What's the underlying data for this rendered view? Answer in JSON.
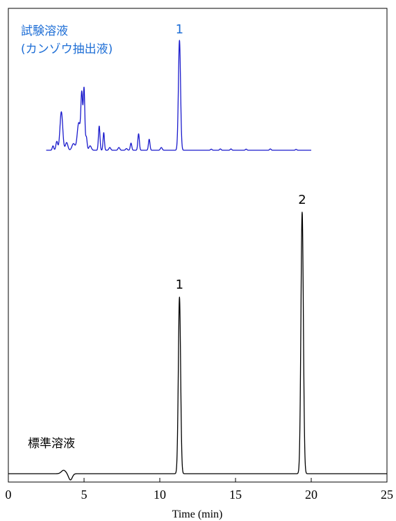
{
  "chart_data": {
    "type": "line",
    "xlabel": "Time (min)",
    "xlim": [
      0,
      25
    ],
    "x_ticks": [
      0,
      5,
      10,
      15,
      20,
      25
    ],
    "x_tick_labels": [
      "0",
      "5",
      "10",
      "15",
      "20",
      "25"
    ],
    "grid": false,
    "series": [
      {
        "name": "試験溶液 (カンゾウ抽出液)",
        "label_lines": [
          "試験溶液",
          "(カンゾウ抽出液)"
        ],
        "color": "#1a1acc",
        "label_color": "#1f6fd6",
        "x_range": [
          2.5,
          20.0
        ],
        "peaks": [
          {
            "t": 2.95,
            "h": 0.04,
            "w": 0.05
          },
          {
            "t": 3.2,
            "h": 0.08,
            "w": 0.06
          },
          {
            "t": 3.5,
            "h": 0.35,
            "w": 0.09
          },
          {
            "t": 3.85,
            "h": 0.07,
            "w": 0.08
          },
          {
            "t": 4.3,
            "h": 0.06,
            "w": 0.1
          },
          {
            "t": 4.65,
            "h": 0.25,
            "w": 0.1
          },
          {
            "t": 4.85,
            "h": 0.5,
            "w": 0.06
          },
          {
            "t": 5.0,
            "h": 0.55,
            "w": 0.05
          },
          {
            "t": 5.15,
            "h": 0.12,
            "w": 0.05
          },
          {
            "t": 5.4,
            "h": 0.04,
            "w": 0.08
          },
          {
            "t": 6.0,
            "h": 0.22,
            "w": 0.05
          },
          {
            "t": 6.3,
            "h": 0.16,
            "w": 0.045
          },
          {
            "t": 6.7,
            "h": 0.025,
            "w": 0.06
          },
          {
            "t": 7.3,
            "h": 0.025,
            "w": 0.06
          },
          {
            "t": 7.8,
            "h": 0.015,
            "w": 0.06
          },
          {
            "t": 8.1,
            "h": 0.065,
            "w": 0.05
          },
          {
            "t": 8.6,
            "h": 0.15,
            "w": 0.05
          },
          {
            "t": 9.3,
            "h": 0.1,
            "w": 0.05
          },
          {
            "t": 10.1,
            "h": 0.025,
            "w": 0.06
          },
          {
            "t": 11.3,
            "h": 1.0,
            "w": 0.07
          },
          {
            "t": 13.4,
            "h": 0.01,
            "w": 0.05
          },
          {
            "t": 14.0,
            "h": 0.012,
            "w": 0.05
          },
          {
            "t": 14.7,
            "h": 0.012,
            "w": 0.05
          },
          {
            "t": 15.7,
            "h": 0.01,
            "w": 0.05
          },
          {
            "t": 17.3,
            "h": 0.012,
            "w": 0.05
          },
          {
            "t": 19.0,
            "h": 0.008,
            "w": 0.05
          }
        ],
        "peak_labels": [
          {
            "t": 11.3,
            "text": "1"
          }
        ]
      },
      {
        "name": "標準溶液",
        "label_lines": [
          "標準溶液"
        ],
        "color": "#000000",
        "label_color": "#000000",
        "x_range": [
          0.0,
          25.0
        ],
        "peaks": [
          {
            "t": 3.65,
            "h": 0.013,
            "w": 0.15
          },
          {
            "t": 4.1,
            "h": -0.024,
            "w": 0.12
          },
          {
            "t": 11.3,
            "h": 0.675,
            "w": 0.075
          },
          {
            "t": 19.4,
            "h": 1.0,
            "w": 0.08
          }
        ],
        "peak_labels": [
          {
            "t": 11.3,
            "text": "1"
          },
          {
            "t": 19.4,
            "text": "2"
          }
        ]
      }
    ]
  }
}
